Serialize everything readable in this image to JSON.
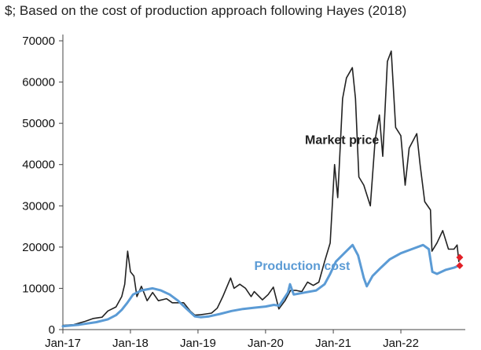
{
  "chart_data": {
    "type": "line",
    "title": "$; Based on the cost of production approach following Hayes (2018)",
    "xlabel": "",
    "ylabel": "",
    "ylim": [
      0,
      70000
    ],
    "yticks": [
      0,
      10000,
      20000,
      30000,
      40000,
      50000,
      60000,
      70000
    ],
    "xlim": [
      "2017-01-01",
      "2022-12-15"
    ],
    "xticks": [
      {
        "date": "2017-01-01",
        "label": "Jan-17"
      },
      {
        "date": "2018-01-01",
        "label": "Jan-18"
      },
      {
        "date": "2019-01-01",
        "label": "Jan-19"
      },
      {
        "date": "2020-01-01",
        "label": "Jan-20"
      },
      {
        "date": "2021-01-01",
        "label": "Jan-21"
      },
      {
        "date": "2022-01-01",
        "label": "Jan-22"
      }
    ],
    "grid": false,
    "legend": "none",
    "series": [
      {
        "name": "Market price",
        "color": "#222222",
        "points": [
          [
            "2017-01-01",
            1000
          ],
          [
            "2017-03-01",
            1200
          ],
          [
            "2017-05-01",
            2000
          ],
          [
            "2017-06-15",
            2700
          ],
          [
            "2017-08-01",
            3000
          ],
          [
            "2017-09-01",
            4500
          ],
          [
            "2017-10-15",
            5500
          ],
          [
            "2017-11-15",
            8000
          ],
          [
            "2017-12-01",
            11000
          ],
          [
            "2017-12-17",
            19000
          ],
          [
            "2018-01-01",
            14000
          ],
          [
            "2018-01-20",
            13000
          ],
          [
            "2018-02-05",
            8000
          ],
          [
            "2018-03-01",
            10500
          ],
          [
            "2018-04-01",
            7000
          ],
          [
            "2018-05-01",
            9000
          ],
          [
            "2018-06-01",
            7000
          ],
          [
            "2018-07-15",
            7500
          ],
          [
            "2018-08-15",
            6500
          ],
          [
            "2018-09-15",
            6500
          ],
          [
            "2018-10-15",
            6500
          ],
          [
            "2018-11-20",
            4500
          ],
          [
            "2018-12-15",
            3500
          ],
          [
            "2019-01-15",
            3600
          ],
          [
            "2019-02-15",
            3800
          ],
          [
            "2019-03-15",
            4000
          ],
          [
            "2019-04-15",
            5200
          ],
          [
            "2019-05-15",
            8000
          ],
          [
            "2019-06-26",
            12500
          ],
          [
            "2019-07-15",
            10000
          ],
          [
            "2019-08-15",
            11000
          ],
          [
            "2019-09-15",
            10000
          ],
          [
            "2019-10-15",
            8000
          ],
          [
            "2019-11-01",
            9200
          ],
          [
            "2019-12-15",
            7200
          ],
          [
            "2020-01-15",
            8500
          ],
          [
            "2020-02-12",
            10300
          ],
          [
            "2020-03-13",
            5000
          ],
          [
            "2020-04-15",
            7000
          ],
          [
            "2020-05-15",
            9500
          ],
          [
            "2020-06-15",
            9500
          ],
          [
            "2020-07-15",
            9200
          ],
          [
            "2020-08-15",
            11500
          ],
          [
            "2020-09-15",
            10700
          ],
          [
            "2020-10-15",
            11500
          ],
          [
            "2020-11-15",
            16500
          ],
          [
            "2020-12-15",
            21000
          ],
          [
            "2021-01-08",
            40000
          ],
          [
            "2021-01-25",
            32000
          ],
          [
            "2021-02-20",
            56000
          ],
          [
            "2021-03-13",
            61000
          ],
          [
            "2021-04-14",
            63500
          ],
          [
            "2021-05-01",
            56000
          ],
          [
            "2021-05-19",
            37000
          ],
          [
            "2021-06-15",
            35000
          ],
          [
            "2021-07-20",
            30000
          ],
          [
            "2021-08-15",
            46000
          ],
          [
            "2021-09-07",
            52000
          ],
          [
            "2021-09-25",
            42000
          ],
          [
            "2021-10-20",
            65000
          ],
          [
            "2021-11-10",
            67500
          ],
          [
            "2021-12-04",
            49000
          ],
          [
            "2022-01-01",
            47000
          ],
          [
            "2022-01-24",
            35000
          ],
          [
            "2022-02-15",
            44000
          ],
          [
            "2022-03-28",
            47500
          ],
          [
            "2022-04-15",
            40000
          ],
          [
            "2022-05-10",
            31000
          ],
          [
            "2022-06-10",
            29000
          ],
          [
            "2022-06-18",
            19000
          ],
          [
            "2022-07-15",
            21000
          ],
          [
            "2022-08-15",
            24000
          ],
          [
            "2022-09-15",
            19500
          ],
          [
            "2022-10-15",
            19500
          ],
          [
            "2022-11-01",
            20500
          ],
          [
            "2022-11-10",
            16500
          ]
        ]
      },
      {
        "name": "Production cost",
        "color": "#5b9bd5",
        "points": [
          [
            "2017-01-01",
            800
          ],
          [
            "2017-04-01",
            1200
          ],
          [
            "2017-07-01",
            1800
          ],
          [
            "2017-09-01",
            2500
          ],
          [
            "2017-10-15",
            3500
          ],
          [
            "2017-11-15",
            4800
          ],
          [
            "2017-12-15",
            6500
          ],
          [
            "2018-01-15",
            8500
          ],
          [
            "2018-03-01",
            9500
          ],
          [
            "2018-05-01",
            10000
          ],
          [
            "2018-06-15",
            9500
          ],
          [
            "2018-08-01",
            8500
          ],
          [
            "2018-09-15",
            7000
          ],
          [
            "2018-11-01",
            5000
          ],
          [
            "2018-12-15",
            3200
          ],
          [
            "2019-01-15",
            3000
          ],
          [
            "2019-03-01",
            3200
          ],
          [
            "2019-05-01",
            3800
          ],
          [
            "2019-07-01",
            4500
          ],
          [
            "2019-09-01",
            5000
          ],
          [
            "2019-11-01",
            5300
          ],
          [
            "2020-01-01",
            5600
          ],
          [
            "2020-02-15",
            6000
          ],
          [
            "2020-03-15",
            5800
          ],
          [
            "2020-05-01",
            9000
          ],
          [
            "2020-05-12",
            11000
          ],
          [
            "2020-06-01",
            8500
          ],
          [
            "2020-08-01",
            9000
          ],
          [
            "2020-10-01",
            9500
          ],
          [
            "2020-11-15",
            11000
          ],
          [
            "2020-12-15",
            13500
          ],
          [
            "2021-01-15",
            16500
          ],
          [
            "2021-03-01",
            18500
          ],
          [
            "2021-04-15",
            20500
          ],
          [
            "2021-05-15",
            18000
          ],
          [
            "2021-06-15",
            12500
          ],
          [
            "2021-07-01",
            10500
          ],
          [
            "2021-08-01",
            13000
          ],
          [
            "2021-09-15",
            15000
          ],
          [
            "2021-11-01",
            17000
          ],
          [
            "2022-01-01",
            18500
          ],
          [
            "2022-03-01",
            19500
          ],
          [
            "2022-05-01",
            20500
          ],
          [
            "2022-06-01",
            19500
          ],
          [
            "2022-06-20",
            14000
          ],
          [
            "2022-07-15",
            13500
          ],
          [
            "2022-09-01",
            14500
          ],
          [
            "2022-10-15",
            15000
          ],
          [
            "2022-11-10",
            15500
          ]
        ]
      }
    ],
    "markers": {
      "color": "#e21f26",
      "points": [
        [
          "2022-11-15",
          17500
        ],
        [
          "2022-11-15",
          15500
        ]
      ]
    },
    "annotations": [
      {
        "text": "Market price",
        "date": "2020-08-01",
        "value": 45000,
        "color": "#222222"
      },
      {
        "text": "Production cost",
        "date": "2019-11-01",
        "value": 14500,
        "color": "#5b9bd5"
      }
    ]
  }
}
